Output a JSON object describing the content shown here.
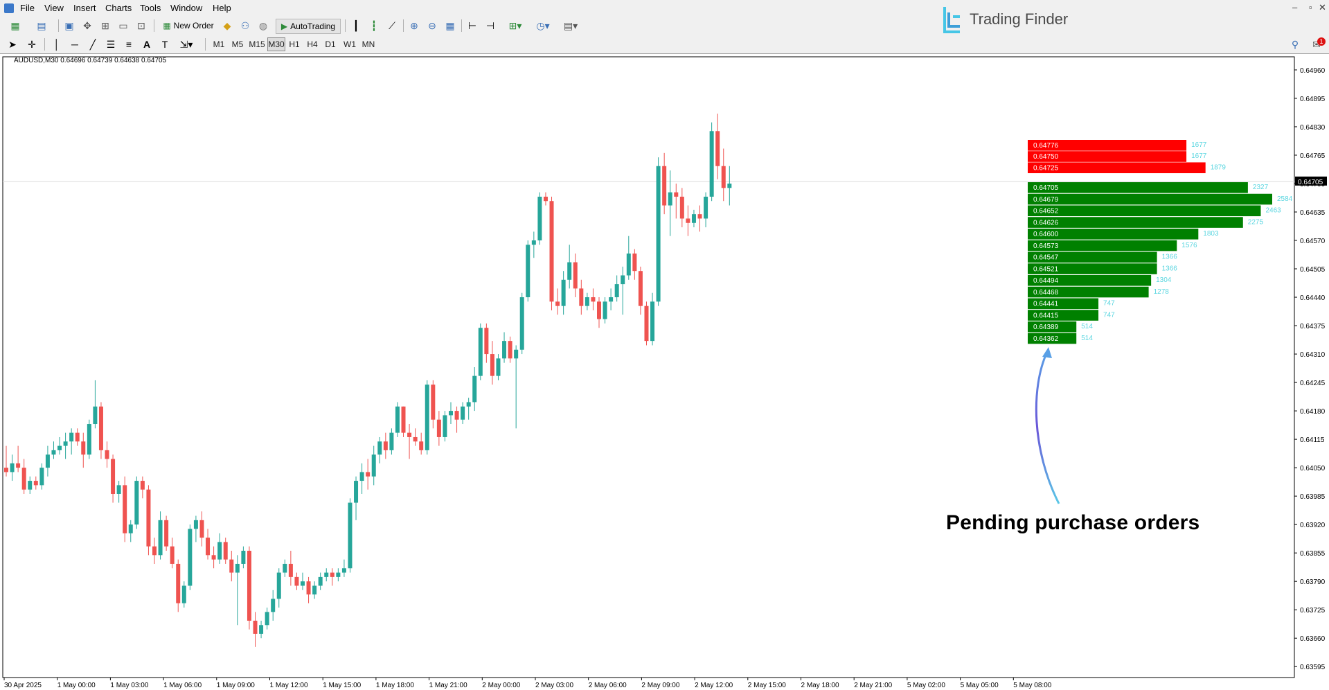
{
  "menu": [
    "File",
    "View",
    "Insert",
    "Charts",
    "Tools",
    "Window",
    "Help"
  ],
  "toolbar": {
    "new_order_label": "New Order",
    "autotrading_label": "AutoTrading",
    "timeframes": [
      "M1",
      "M5",
      "M15",
      "M30",
      "H1",
      "H4",
      "D1",
      "W1",
      "MN"
    ],
    "active_timeframe": "M30"
  },
  "logo": {
    "text": "Trading Finder"
  },
  "window": {
    "notification_count": "1"
  },
  "chart": {
    "title": "AUDUSD,M30  0.64696 0.64739 0.64638 0.64705",
    "current_price": "0.64705",
    "price_axis": [
      "0.64960",
      "0.64895",
      "0.64830",
      "0.64765",
      "0.64700",
      "0.64635",
      "0.64570",
      "0.64505",
      "0.64440",
      "0.64375",
      "0.64310",
      "0.64245",
      "0.64180",
      "0.64115",
      "0.64050",
      "0.63985",
      "0.63920",
      "0.63855",
      "0.63790",
      "0.63725",
      "0.63660",
      "0.63595"
    ],
    "time_axis": [
      "30 Apr 2025",
      "1 May 00:00",
      "1 May 03:00",
      "1 May 06:00",
      "1 May 09:00",
      "1 May 12:00",
      "1 May 15:00",
      "1 May 18:00",
      "1 May 21:00",
      "2 May 00:00",
      "2 May 03:00",
      "2 May 06:00",
      "2 May 09:00",
      "2 May 12:00",
      "2 May 15:00",
      "2 May 18:00",
      "2 May 21:00",
      "5 May 02:00",
      "5 May 05:00",
      "5 May 08:00"
    ],
    "annotation": "Pending purchase orders",
    "colors": {
      "bull": "#26a69a",
      "bear": "#ef5350",
      "sell_level": "#ff0000",
      "buy_level": "#008000",
      "count_text": "#5ad6e0"
    }
  },
  "chart_data": {
    "type": "candlestick",
    "symbol": "AUDUSD",
    "timeframe": "M30",
    "ylim": [
      0.6357,
      0.6499
    ],
    "candles": [
      [
        0.6405,
        0.641,
        0.6403,
        0.6404
      ],
      [
        0.6404,
        0.6408,
        0.6402,
        0.6406
      ],
      [
        0.6406,
        0.641,
        0.6404,
        0.6405
      ],
      [
        0.6405,
        0.6407,
        0.6399,
        0.64
      ],
      [
        0.64,
        0.6403,
        0.6399,
        0.6402
      ],
      [
        0.6402,
        0.6403,
        0.64,
        0.6401
      ],
      [
        0.6401,
        0.6406,
        0.64,
        0.6405
      ],
      [
        0.6405,
        0.641,
        0.6403,
        0.6408
      ],
      [
        0.6408,
        0.6411,
        0.6407,
        0.6409
      ],
      [
        0.6409,
        0.6412,
        0.6408,
        0.641
      ],
      [
        0.641,
        0.6413,
        0.6407,
        0.6411
      ],
      [
        0.6411,
        0.6414,
        0.6408,
        0.6413
      ],
      [
        0.6413,
        0.6414,
        0.641,
        0.6411
      ],
      [
        0.6411,
        0.6413,
        0.6405,
        0.6408
      ],
      [
        0.6408,
        0.6416,
        0.6407,
        0.6415
      ],
      [
        0.6415,
        0.6425,
        0.6414,
        0.6419
      ],
      [
        0.6419,
        0.642,
        0.6407,
        0.6409
      ],
      [
        0.6409,
        0.6411,
        0.6405,
        0.6407
      ],
      [
        0.6407,
        0.6408,
        0.6397,
        0.6399
      ],
      [
        0.6399,
        0.6402,
        0.6397,
        0.6401
      ],
      [
        0.6401,
        0.6403,
        0.6388,
        0.639
      ],
      [
        0.639,
        0.6393,
        0.6388,
        0.6392
      ],
      [
        0.6392,
        0.6403,
        0.6391,
        0.6402
      ],
      [
        0.6402,
        0.6403,
        0.6398,
        0.64
      ],
      [
        0.64,
        0.6401,
        0.6385,
        0.6387
      ],
      [
        0.6387,
        0.6389,
        0.6383,
        0.6385
      ],
      [
        0.6385,
        0.6395,
        0.6384,
        0.6393
      ],
      [
        0.6393,
        0.6394,
        0.6386,
        0.6387
      ],
      [
        0.6387,
        0.6389,
        0.6382,
        0.6383
      ],
      [
        0.6383,
        0.6384,
        0.6372,
        0.6374
      ],
      [
        0.6374,
        0.6379,
        0.6373,
        0.6378
      ],
      [
        0.6378,
        0.6392,
        0.6377,
        0.6391
      ],
      [
        0.6391,
        0.6394,
        0.6388,
        0.6393
      ],
      [
        0.6393,
        0.6395,
        0.6387,
        0.6389
      ],
      [
        0.6389,
        0.6391,
        0.6384,
        0.6385
      ],
      [
        0.6385,
        0.6387,
        0.6382,
        0.6384
      ],
      [
        0.6384,
        0.639,
        0.6383,
        0.6388
      ],
      [
        0.6388,
        0.6389,
        0.6383,
        0.6384
      ],
      [
        0.6384,
        0.6386,
        0.6379,
        0.6381
      ],
      [
        0.6381,
        0.6385,
        0.6369,
        0.6383
      ],
      [
        0.6383,
        0.6387,
        0.6382,
        0.6386
      ],
      [
        0.6386,
        0.6387,
        0.6368,
        0.637
      ],
      [
        0.637,
        0.6372,
        0.6364,
        0.6367
      ],
      [
        0.6367,
        0.637,
        0.6366,
        0.6369
      ],
      [
        0.6369,
        0.6373,
        0.6368,
        0.6372
      ],
      [
        0.6372,
        0.6377,
        0.637,
        0.6375
      ],
      [
        0.6375,
        0.6382,
        0.6373,
        0.6381
      ],
      [
        0.6381,
        0.6384,
        0.638,
        0.6383
      ],
      [
        0.6383,
        0.6386,
        0.6378,
        0.638
      ],
      [
        0.638,
        0.6381,
        0.6377,
        0.6378
      ],
      [
        0.6378,
        0.6381,
        0.6377,
        0.6379
      ],
      [
        0.6379,
        0.638,
        0.6374,
        0.6376
      ],
      [
        0.6376,
        0.6379,
        0.6375,
        0.6378
      ],
      [
        0.6378,
        0.6381,
        0.6377,
        0.638
      ],
      [
        0.638,
        0.6382,
        0.6379,
        0.6381
      ],
      [
        0.6381,
        0.6382,
        0.6378,
        0.638
      ],
      [
        0.638,
        0.6382,
        0.6379,
        0.6381
      ],
      [
        0.6381,
        0.6384,
        0.638,
        0.6382
      ],
      [
        0.6382,
        0.6398,
        0.6381,
        0.6397
      ],
      [
        0.6397,
        0.6403,
        0.6393,
        0.6402
      ],
      [
        0.6402,
        0.6406,
        0.6399,
        0.6404
      ],
      [
        0.6404,
        0.6407,
        0.64,
        0.6403
      ],
      [
        0.6403,
        0.641,
        0.6401,
        0.6408
      ],
      [
        0.6408,
        0.6412,
        0.6406,
        0.6411
      ],
      [
        0.6411,
        0.6413,
        0.6407,
        0.6409
      ],
      [
        0.6409,
        0.6414,
        0.6408,
        0.6413
      ],
      [
        0.6413,
        0.642,
        0.6412,
        0.6419
      ],
      [
        0.6419,
        0.6419,
        0.6412,
        0.6413
      ],
      [
        0.6413,
        0.6415,
        0.6407,
        0.6412
      ],
      [
        0.6412,
        0.6414,
        0.641,
        0.6411
      ],
      [
        0.6411,
        0.6413,
        0.6408,
        0.6409
      ],
      [
        0.6409,
        0.6425,
        0.6408,
        0.6424
      ],
      [
        0.6424,
        0.6425,
        0.6414,
        0.6416
      ],
      [
        0.6416,
        0.6418,
        0.641,
        0.6412
      ],
      [
        0.6412,
        0.6418,
        0.6411,
        0.6417
      ],
      [
        0.6417,
        0.642,
        0.6415,
        0.6418
      ],
      [
        0.6418,
        0.6419,
        0.6413,
        0.6416
      ],
      [
        0.6416,
        0.642,
        0.6415,
        0.6419
      ],
      [
        0.6419,
        0.6421,
        0.6416,
        0.642
      ],
      [
        0.642,
        0.6428,
        0.6418,
        0.6426
      ],
      [
        0.6426,
        0.6438,
        0.6425,
        0.6437
      ],
      [
        0.6437,
        0.6438,
        0.6429,
        0.6431
      ],
      [
        0.6431,
        0.6434,
        0.6424,
        0.6426
      ],
      [
        0.6426,
        0.6431,
        0.6425,
        0.643
      ],
      [
        0.643,
        0.6436,
        0.6429,
        0.6434
      ],
      [
        0.6434,
        0.6435,
        0.6429,
        0.643
      ],
      [
        0.643,
        0.6433,
        0.6414,
        0.6432
      ],
      [
        0.6432,
        0.6445,
        0.6431,
        0.6444
      ],
      [
        0.6444,
        0.6457,
        0.6443,
        0.6456
      ],
      [
        0.6456,
        0.6459,
        0.6453,
        0.6457
      ],
      [
        0.6457,
        0.6468,
        0.6456,
        0.6467
      ],
      [
        0.6467,
        0.6468,
        0.6465,
        0.6466
      ],
      [
        0.6466,
        0.6467,
        0.6441,
        0.6443
      ],
      [
        0.6443,
        0.6446,
        0.644,
        0.6442
      ],
      [
        0.6442,
        0.645,
        0.644,
        0.6448
      ],
      [
        0.6448,
        0.6456,
        0.6446,
        0.6452
      ],
      [
        0.6452,
        0.6454,
        0.6444,
        0.6446
      ],
      [
        0.6446,
        0.6448,
        0.644,
        0.6442
      ],
      [
        0.6442,
        0.6445,
        0.6441,
        0.6444
      ],
      [
        0.6444,
        0.6446,
        0.6441,
        0.6443
      ],
      [
        0.6443,
        0.6444,
        0.6437,
        0.6439
      ],
      [
        0.6439,
        0.6444,
        0.6438,
        0.6443
      ],
      [
        0.6443,
        0.6446,
        0.6441,
        0.6444
      ],
      [
        0.6444,
        0.6449,
        0.6443,
        0.6447
      ],
      [
        0.6447,
        0.6451,
        0.644,
        0.6449
      ],
      [
        0.6449,
        0.6458,
        0.6448,
        0.6454
      ],
      [
        0.6454,
        0.6455,
        0.6448,
        0.645
      ],
      [
        0.645,
        0.6451,
        0.644,
        0.6442
      ],
      [
        0.6442,
        0.6443,
        0.6433,
        0.6434
      ],
      [
        0.6434,
        0.6445,
        0.6433,
        0.6443
      ],
      [
        0.6443,
        0.6476,
        0.6442,
        0.6474
      ],
      [
        0.6474,
        0.6477,
        0.6463,
        0.6465
      ],
      [
        0.6465,
        0.6473,
        0.6458,
        0.6468
      ],
      [
        0.6468,
        0.647,
        0.6462,
        0.6467
      ],
      [
        0.6467,
        0.6469,
        0.646,
        0.6462
      ],
      [
        0.6462,
        0.6465,
        0.6458,
        0.6461
      ],
      [
        0.6461,
        0.6464,
        0.646,
        0.6463
      ],
      [
        0.6463,
        0.6465,
        0.6459,
        0.6462
      ],
      [
        0.6462,
        0.6468,
        0.646,
        0.6467
      ],
      [
        0.6467,
        0.6484,
        0.6466,
        0.6482
      ],
      [
        0.6482,
        0.6486,
        0.6471,
        0.6474
      ],
      [
        0.6474,
        0.6478,
        0.6466,
        0.6469
      ],
      [
        0.6469,
        0.6474,
        0.6465,
        0.647
      ]
    ],
    "order_levels": [
      {
        "price": "0.64776",
        "count": "1677",
        "side": "sell"
      },
      {
        "price": "0.64750",
        "count": "1677",
        "side": "sell"
      },
      {
        "price": "0.64725",
        "count": "1879",
        "side": "sell"
      },
      {
        "price": "0.64705",
        "count": "2327",
        "side": "buy"
      },
      {
        "price": "0.64679",
        "count": "2584",
        "side": "buy"
      },
      {
        "price": "0.64652",
        "count": "2463",
        "side": "buy"
      },
      {
        "price": "0.64626",
        "count": "2275",
        "side": "buy"
      },
      {
        "price": "0.64600",
        "count": "1803",
        "side": "buy"
      },
      {
        "price": "0.64573",
        "count": "1576",
        "side": "buy"
      },
      {
        "price": "0.64547",
        "count": "1366",
        "side": "buy"
      },
      {
        "price": "0.64521",
        "count": "1366",
        "side": "buy"
      },
      {
        "price": "0.64494",
        "count": "1304",
        "side": "buy"
      },
      {
        "price": "0.64468",
        "count": "1278",
        "side": "buy"
      },
      {
        "price": "0.64441",
        "count": "747",
        "side": "buy"
      },
      {
        "price": "0.64415",
        "count": "747",
        "side": "buy"
      },
      {
        "price": "0.64389",
        "count": "514",
        "side": "buy"
      },
      {
        "price": "0.64362",
        "count": "514",
        "side": "buy"
      }
    ]
  }
}
